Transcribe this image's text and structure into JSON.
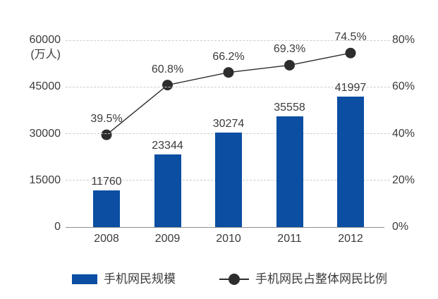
{
  "chart_data": {
    "type": "bar",
    "title": "",
    "categories": [
      "2008",
      "2009",
      "2010",
      "2011",
      "2012"
    ],
    "series": [
      {
        "name": "手机网民规模",
        "type": "bar",
        "axis": "left",
        "color": "#0b4ea2",
        "values": [
          11760,
          23344,
          30274,
          35558,
          41997
        ],
        "labels": [
          "11760",
          "23344",
          "30274",
          "35558",
          "41997"
        ]
      },
      {
        "name": "手机网民占整体网民比例",
        "type": "line",
        "axis": "right",
        "color": "#2d2d2d",
        "values": [
          39.5,
          60.8,
          66.2,
          69.3,
          74.5
        ],
        "labels": [
          "39.5%",
          "60.8%",
          "66.2%",
          "69.3%",
          "74.5%"
        ]
      }
    ],
    "left_axis": {
      "unit": "(万人)",
      "ticks": [
        "0",
        "15000",
        "30000",
        "45000",
        "60000"
      ],
      "min": 0,
      "max": 60000
    },
    "right_axis": {
      "ticks": [
        "0%",
        "20%",
        "40%",
        "60%",
        "80%"
      ],
      "min": 0,
      "max": 80
    },
    "grid": "horizontal dashed",
    "legend_position": "bottom",
    "colors": {
      "bar": "#0b4ea2",
      "line": "#2d2d2d",
      "dot": "#2d2d2d",
      "grid": "#cfcccc",
      "axis_line": "#8f8f8f",
      "text": "#3b3b3b"
    }
  }
}
